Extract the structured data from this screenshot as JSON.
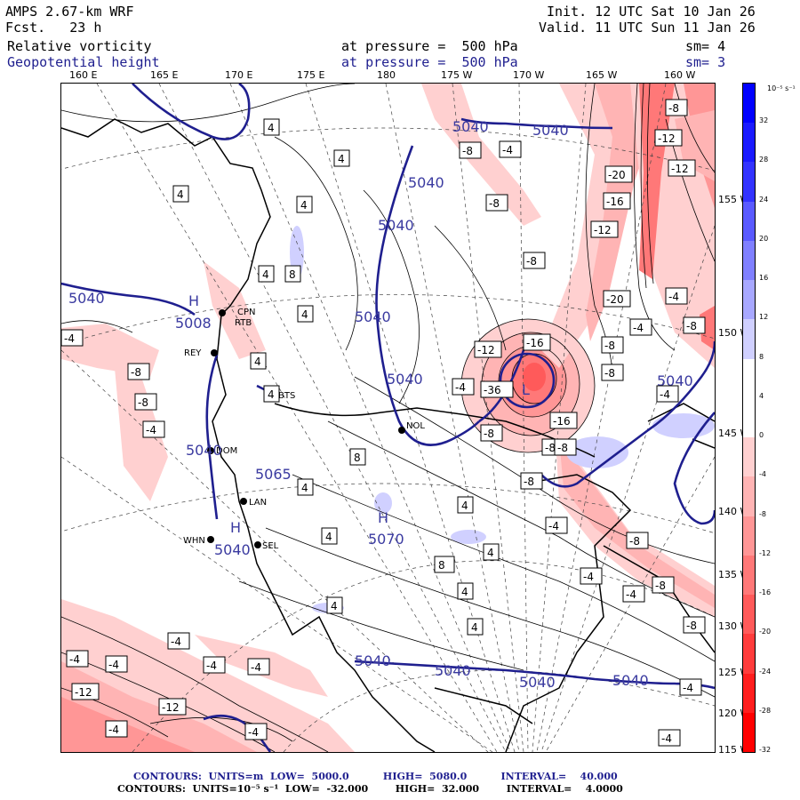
{
  "header": {
    "model": "AMPS 2.67-km WRF",
    "forecast": "Fcst.   23 h",
    "init": "Init. 12 UTC Sat 10 Jan 26",
    "valid": "Valid. 11 UTC Sun 11 Jan 26",
    "field1_name": "Relative vorticity",
    "field1_level": "at pressure =  500 hPa",
    "field1_sm": "sm= 4",
    "field2_name": "Geopotential height",
    "field2_level": "at pressure =  500 hPa",
    "field2_sm": "sm= 3"
  },
  "longitude_ticks": [
    "160 E",
    "165 E",
    "170 E",
    "175 E",
    "180",
    "175 W",
    "170 W",
    "165 W",
    "160 W"
  ],
  "latitude_ticks": [
    "155 W",
    "150 W",
    "145 W",
    "140 W",
    "135 W",
    "130 W",
    "125 W",
    "120 W",
    "115 W"
  ],
  "colorbar": {
    "unit": "10⁻⁵ s⁻¹",
    "labels": [
      "32",
      "28",
      "24",
      "20",
      "16",
      "12",
      "8",
      "4",
      "0",
      "-4",
      "-8",
      "-12",
      "-16",
      "-20",
      "-24",
      "-28",
      "-32"
    ],
    "colors": [
      "#0000ff",
      "#1a1aff",
      "#3333ff",
      "#5a5aff",
      "#8080ff",
      "#a8a8ff",
      "#d0d0ff",
      "#ffffff",
      "#ffffff",
      "#ffd0d0",
      "#ffb4b4",
      "#ff9696",
      "#ff7878",
      "#ff5a5a",
      "#ff3c3c",
      "#ff1e1e",
      "#ff0000"
    ]
  },
  "height_labels": [
    "5040",
    "5040",
    "5040",
    "5040",
    "5040",
    "5040",
    "5040",
    "5040",
    "5040",
    "5040",
    "5040",
    "5040",
    "5040",
    "5040",
    "5065",
    "5070",
    "5008"
  ],
  "highs_lows": [
    "H",
    "H",
    "H",
    "L"
  ],
  "stations": [
    "CPN",
    "RTB",
    "REY",
    "BTS",
    "NOL",
    "DOM",
    "LAN",
    "WHN",
    "SEL"
  ],
  "vorticity_labels": [
    "4",
    "-8",
    "-8",
    "-4",
    "-12",
    "-16",
    "-20",
    "-12",
    "-36",
    "8",
    "-4",
    "-16",
    "-12"
  ],
  "footer": {
    "line1": "CONTOURS:  UNITS=m  LOW=  5000.0          HIGH=  5080.0          INTERVAL=    40.000",
    "line2": "CONTOURS:  UNITS=10⁻⁵ s⁻¹  LOW=  -32.000        HIGH=  32.000        INTERVAL=    4.0000"
  }
}
